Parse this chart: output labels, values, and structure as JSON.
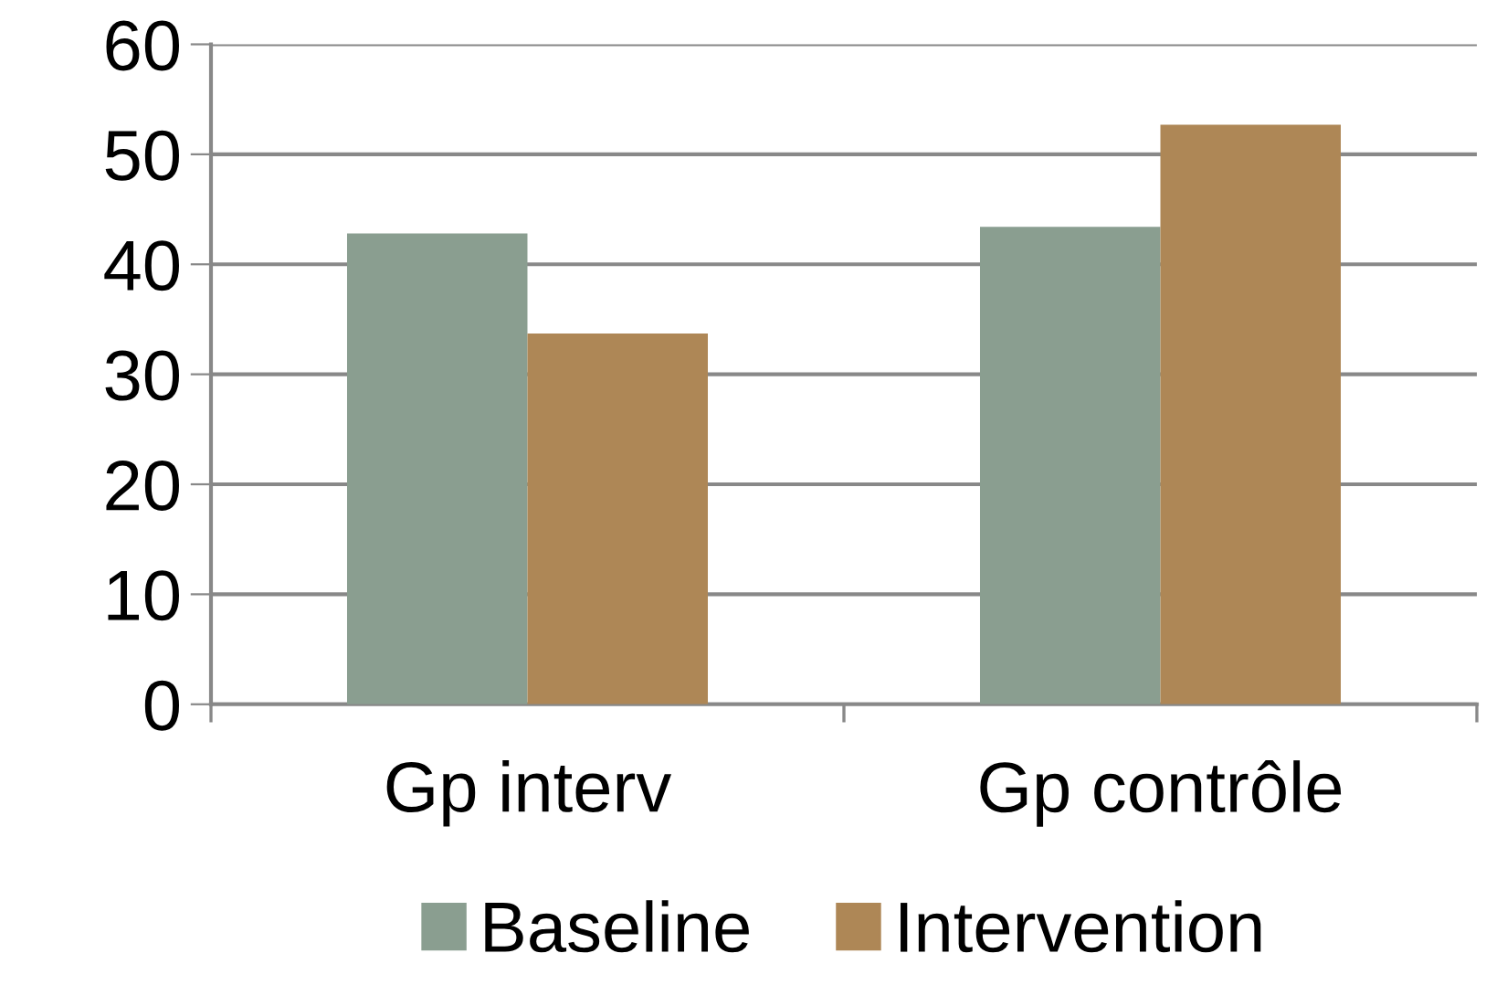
{
  "chart_data": {
    "type": "bar",
    "categories": [
      "Gp interv",
      "Gp contrôle"
    ],
    "series": [
      {
        "name": "Baseline",
        "color": "#8a9e90",
        "values": [
          42.8,
          43.4
        ]
      },
      {
        "name": "Intervention",
        "color": "#ae8756",
        "values": [
          33.7,
          52.7
        ]
      }
    ],
    "ylim": [
      0,
      60
    ],
    "yticks": [
      0,
      10,
      20,
      30,
      40,
      50,
      60
    ],
    "grid": "y",
    "legend": "bottom"
  }
}
